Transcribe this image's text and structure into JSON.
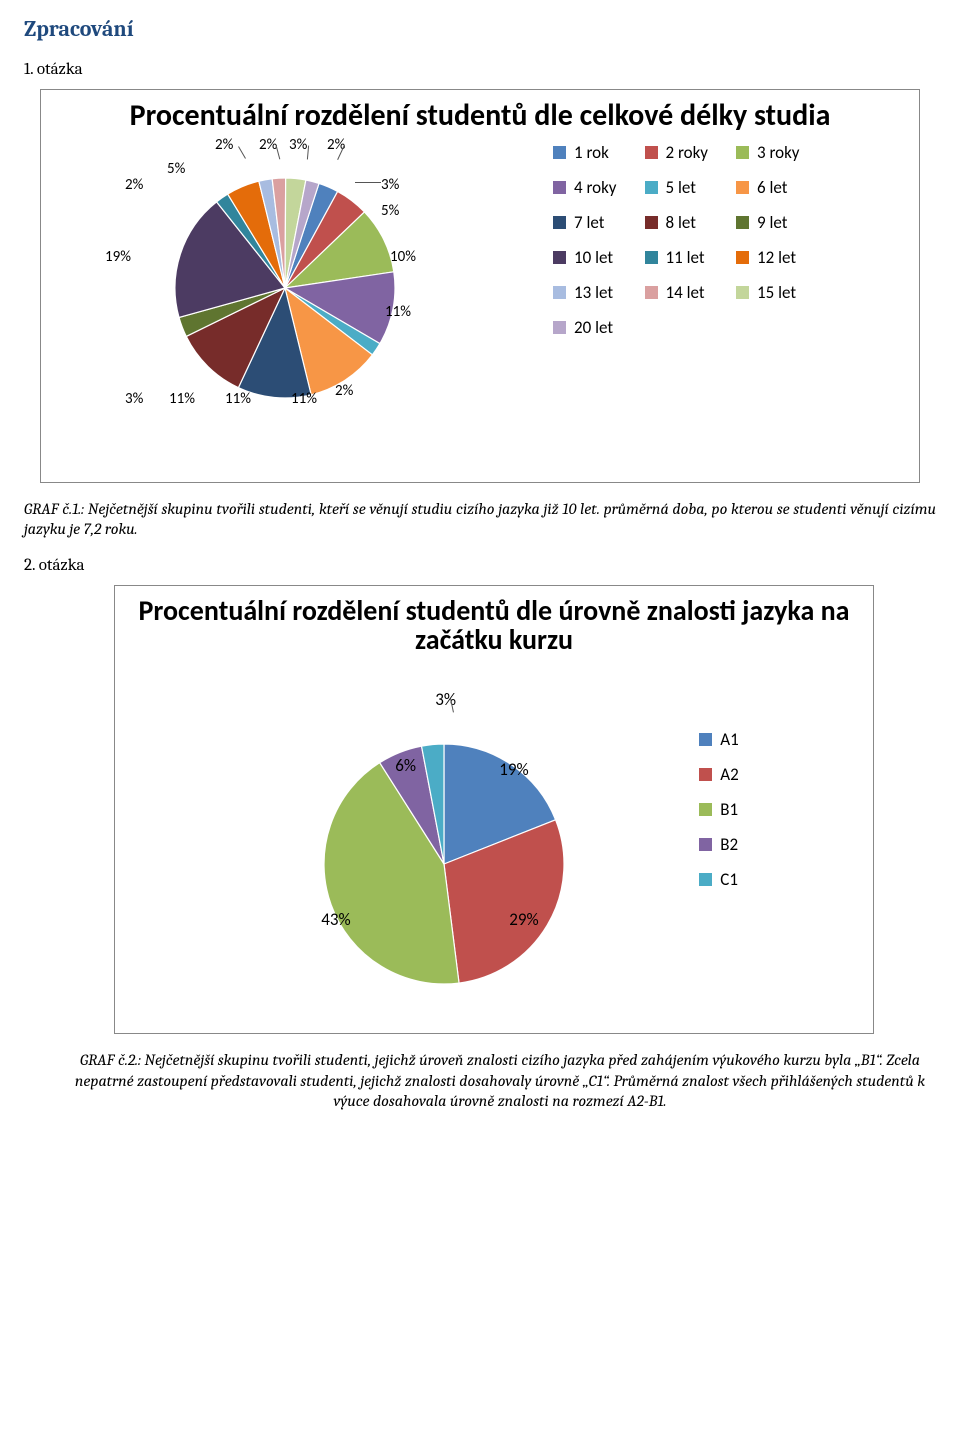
{
  "section_title": "Zpracování",
  "q1_label": "1. otázka",
  "q2_label": "2. otázka",
  "chart1": {
    "type": "pie",
    "title": "Procentuální rozdělení studentů dle celkové délky studia",
    "title_fontsize": 30,
    "background_color": "#ffffff",
    "border_color": "#888888",
    "label_font": "Calibri",
    "label_fontsize": 15,
    "slices": [
      {
        "label": "1 rok",
        "value": 3,
        "color": "#4f81bd"
      },
      {
        "label": "2 roky",
        "value": 5,
        "color": "#c0504d"
      },
      {
        "label": "3 roky",
        "value": 10,
        "color": "#9bbb59"
      },
      {
        "label": "4 roky",
        "value": 11,
        "color": "#8064a2"
      },
      {
        "label": "5 let",
        "value": 2,
        "color": "#4bacc6"
      },
      {
        "label": "6 let",
        "value": 11,
        "color": "#f79646"
      },
      {
        "label": "7 let",
        "value": 11,
        "color": "#2c4d75"
      },
      {
        "label": "8 let",
        "value": 11,
        "color": "#772c2a"
      },
      {
        "label": "9 let",
        "value": 3,
        "color": "#5f7530"
      },
      {
        "label": "10 let",
        "value": 19,
        "color": "#4c3b62"
      },
      {
        "label": "11 let",
        "value": 2,
        "color": "#31859c"
      },
      {
        "label": "12 let",
        "value": 5,
        "color": "#e46c0a"
      },
      {
        "label": "13 let",
        "value": 2,
        "color": "#a8bce0"
      },
      {
        "label": "14 let",
        "value": 2,
        "color": "#daa0a0"
      },
      {
        "label": "15 let",
        "value": 3,
        "color": "#c3d69b"
      },
      {
        "label": "20 let",
        "value": 2,
        "color": "#b6a6ca"
      }
    ],
    "slice_labels": {
      "p3a": "3%",
      "p5a": "5%",
      "p10": "10%",
      "p11a": "11%",
      "p2a": "2%",
      "p11b": "11%",
      "p11c": "11%",
      "p11d": "11%",
      "p3b": "3%",
      "p19": "19%",
      "p2b": "2%",
      "p5b": "5%",
      "p2c": "2%",
      "p2d": "2%",
      "p3c": "3%",
      "p2e": "2%"
    }
  },
  "caption1": "GRAF č.1.: Nejčetnější skupinu tvořili studenti, kteří se věnují studiu cizího jazyka již 10 let. průměrná doba, po kterou se studenti věnují cizímu jazyku je 7,2 roku.",
  "chart2": {
    "type": "pie",
    "title": "Procentuální rozdělení studentů dle úrovně znalosti jazyka na začátku kurzu",
    "title_fontsize": 28,
    "background_color": "#ffffff",
    "border_color": "#888888",
    "label_font": "Calibri",
    "label_fontsize": 17,
    "slices": [
      {
        "label": "A1",
        "value": 19,
        "color": "#4f81bd"
      },
      {
        "label": "A2",
        "value": 29,
        "color": "#c0504d"
      },
      {
        "label": "B1",
        "value": 43,
        "color": "#9bbb59"
      },
      {
        "label": "B2",
        "value": 6,
        "color": "#8064a2"
      },
      {
        "label": "C1",
        "value": 3,
        "color": "#4bacc6"
      }
    ],
    "slice_labels": {
      "p19": "19%",
      "p29": "29%",
      "p43": "43%",
      "p6": "6%",
      "p3": "3%"
    }
  },
  "caption2": "GRAF č.2.: Nejčetnější skupinu tvořili studenti, jejichž úroveň znalosti cizího jazyka před zahájením výukového kurzu byla „B1“. Zcela nepatrné zastoupení představovali studenti, jejichž znalosti dosahovaly úrovně „C1“. Průměrná znalost všech přihlášených studentů k výuce dosahovala úrovně znalosti na rozmezí A2-B1."
}
